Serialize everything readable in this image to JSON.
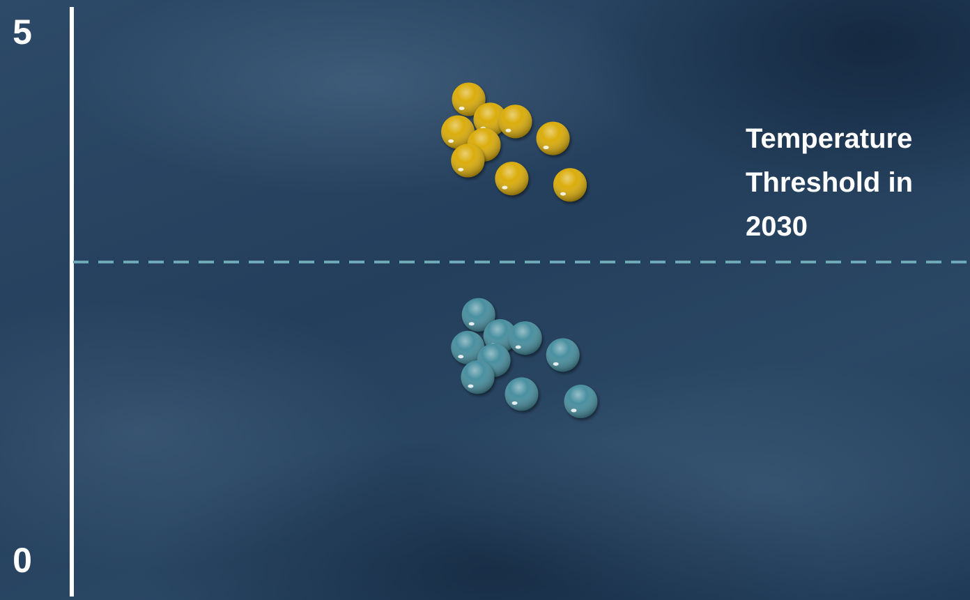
{
  "chart_data": {
    "type": "scatter",
    "ylim": [
      0,
      5
    ],
    "yticks": [
      0,
      5
    ],
    "xlim": [
      0,
      10
    ],
    "threshold": {
      "value": 2.85,
      "label": "Temperature Threshold in 2030",
      "color": "#6fa9b8"
    },
    "series": [
      {
        "color": "#d9a900",
        "x": [
          4.41,
          4.65,
          4.93,
          4.29,
          4.58,
          5.35,
          4.4,
          4.89,
          5.54
        ],
        "values": [
          4.39,
          4.2,
          4.18,
          4.08,
          3.96,
          4.02,
          3.81,
          3.64,
          3.58
        ]
      },
      {
        "color": "#3f8a9b",
        "x": [
          4.52,
          4.76,
          5.04,
          4.4,
          4.69,
          5.46,
          4.51,
          5.0,
          5.66
        ],
        "values": [
          2.35,
          2.15,
          2.13,
          2.04,
          1.92,
          1.97,
          1.76,
          1.6,
          1.53
        ]
      }
    ]
  }
}
